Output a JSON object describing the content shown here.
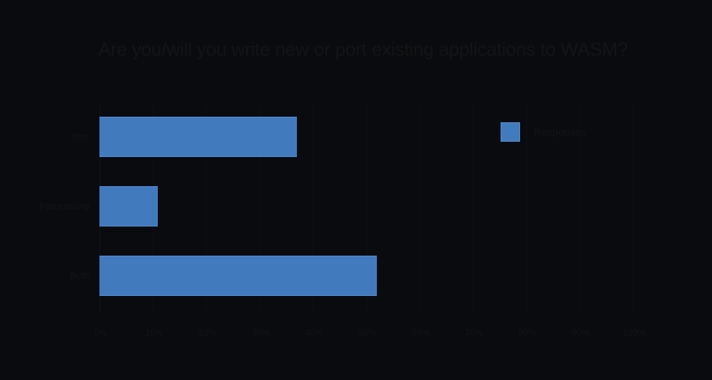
{
  "chart_data": {
    "type": "bar",
    "orientation": "horizontal",
    "title": "Are you/will you write new or port existing applications to WASM?",
    "categories": [
      "New",
      "Port existing",
      "Both"
    ],
    "series": [
      {
        "name": "Responses",
        "values": [
          37,
          11,
          52
        ],
        "color": "#427abe"
      }
    ],
    "xlabel": "",
    "ylabel": "",
    "xlim": [
      0,
      100
    ],
    "x_ticks": [
      "0%",
      "10%",
      "20%",
      "30%",
      "40%",
      "50%",
      "60%",
      "70%",
      "80%",
      "90%",
      "100%"
    ],
    "grid": true,
    "legend_position": "right"
  },
  "colors": {
    "background": "#0a0b0e",
    "bar": "#427abe",
    "text": "#141416"
  }
}
